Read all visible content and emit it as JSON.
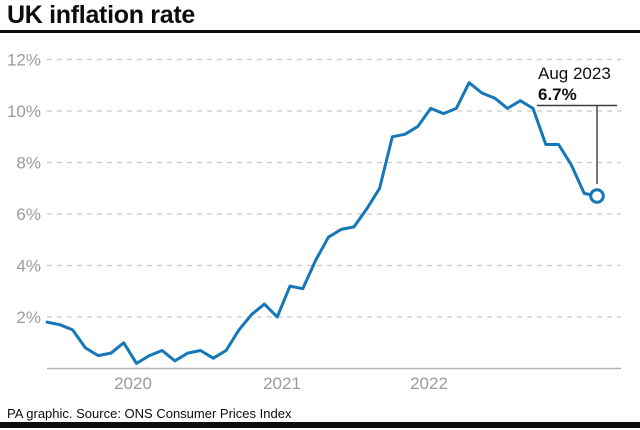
{
  "header": {
    "title": "UK inflation rate"
  },
  "footer": {
    "source": "PA graphic. Source: ONS Consumer Prices Index"
  },
  "chart_data": {
    "type": "line",
    "title": "UK inflation rate",
    "series_name": "UK CPI annual inflation rate (%)",
    "x": [
      "2020-01",
      "2020-02",
      "2020-03",
      "2020-04",
      "2020-05",
      "2020-06",
      "2020-07",
      "2020-08",
      "2020-09",
      "2020-10",
      "2020-11",
      "2020-12",
      "2021-01",
      "2021-02",
      "2021-03",
      "2021-04",
      "2021-05",
      "2021-06",
      "2021-07",
      "2021-08",
      "2021-09",
      "2021-10",
      "2021-11",
      "2021-12",
      "2022-01",
      "2022-02",
      "2022-03",
      "2022-04",
      "2022-05",
      "2022-06",
      "2022-07",
      "2022-08",
      "2022-09",
      "2022-10",
      "2022-11",
      "2022-12",
      "2023-01",
      "2023-02",
      "2023-03",
      "2023-04",
      "2023-05",
      "2023-06",
      "2023-07",
      "2023-08"
    ],
    "values": [
      1.8,
      1.7,
      1.5,
      0.8,
      0.5,
      0.6,
      1.0,
      0.2,
      0.5,
      0.7,
      0.3,
      0.6,
      0.7,
      0.4,
      0.7,
      1.5,
      2.1,
      2.5,
      2.0,
      3.2,
      3.1,
      4.2,
      5.1,
      5.4,
      5.5,
      6.2,
      7.0,
      9.0,
      9.1,
      9.4,
      10.1,
      9.9,
      10.1,
      11.1,
      10.7,
      10.5,
      10.1,
      10.4,
      10.1,
      8.7,
      8.7,
      7.9,
      6.8,
      6.7
    ],
    "ylim": [
      0,
      12
    ],
    "y_ticks": [
      2,
      4,
      6,
      8,
      10,
      12
    ],
    "y_tick_labels": [
      "2%",
      "4%",
      "6%",
      "8%",
      "10%",
      "12%"
    ],
    "x_tick_labels": [
      "2020",
      "2021",
      "2022"
    ],
    "grid": "horizontal-dashed",
    "legend": "none",
    "annotation": {
      "date": "Aug 2023",
      "value": "6.7%"
    },
    "colors": {
      "line": "#1577b8",
      "grid": "#c9c9c9",
      "axis": "#b3b3b3",
      "tick_text": "#9b9b9b",
      "text": "#111111",
      "pointer": "#3d3d3d",
      "marker_fill": "#ffffff"
    }
  }
}
